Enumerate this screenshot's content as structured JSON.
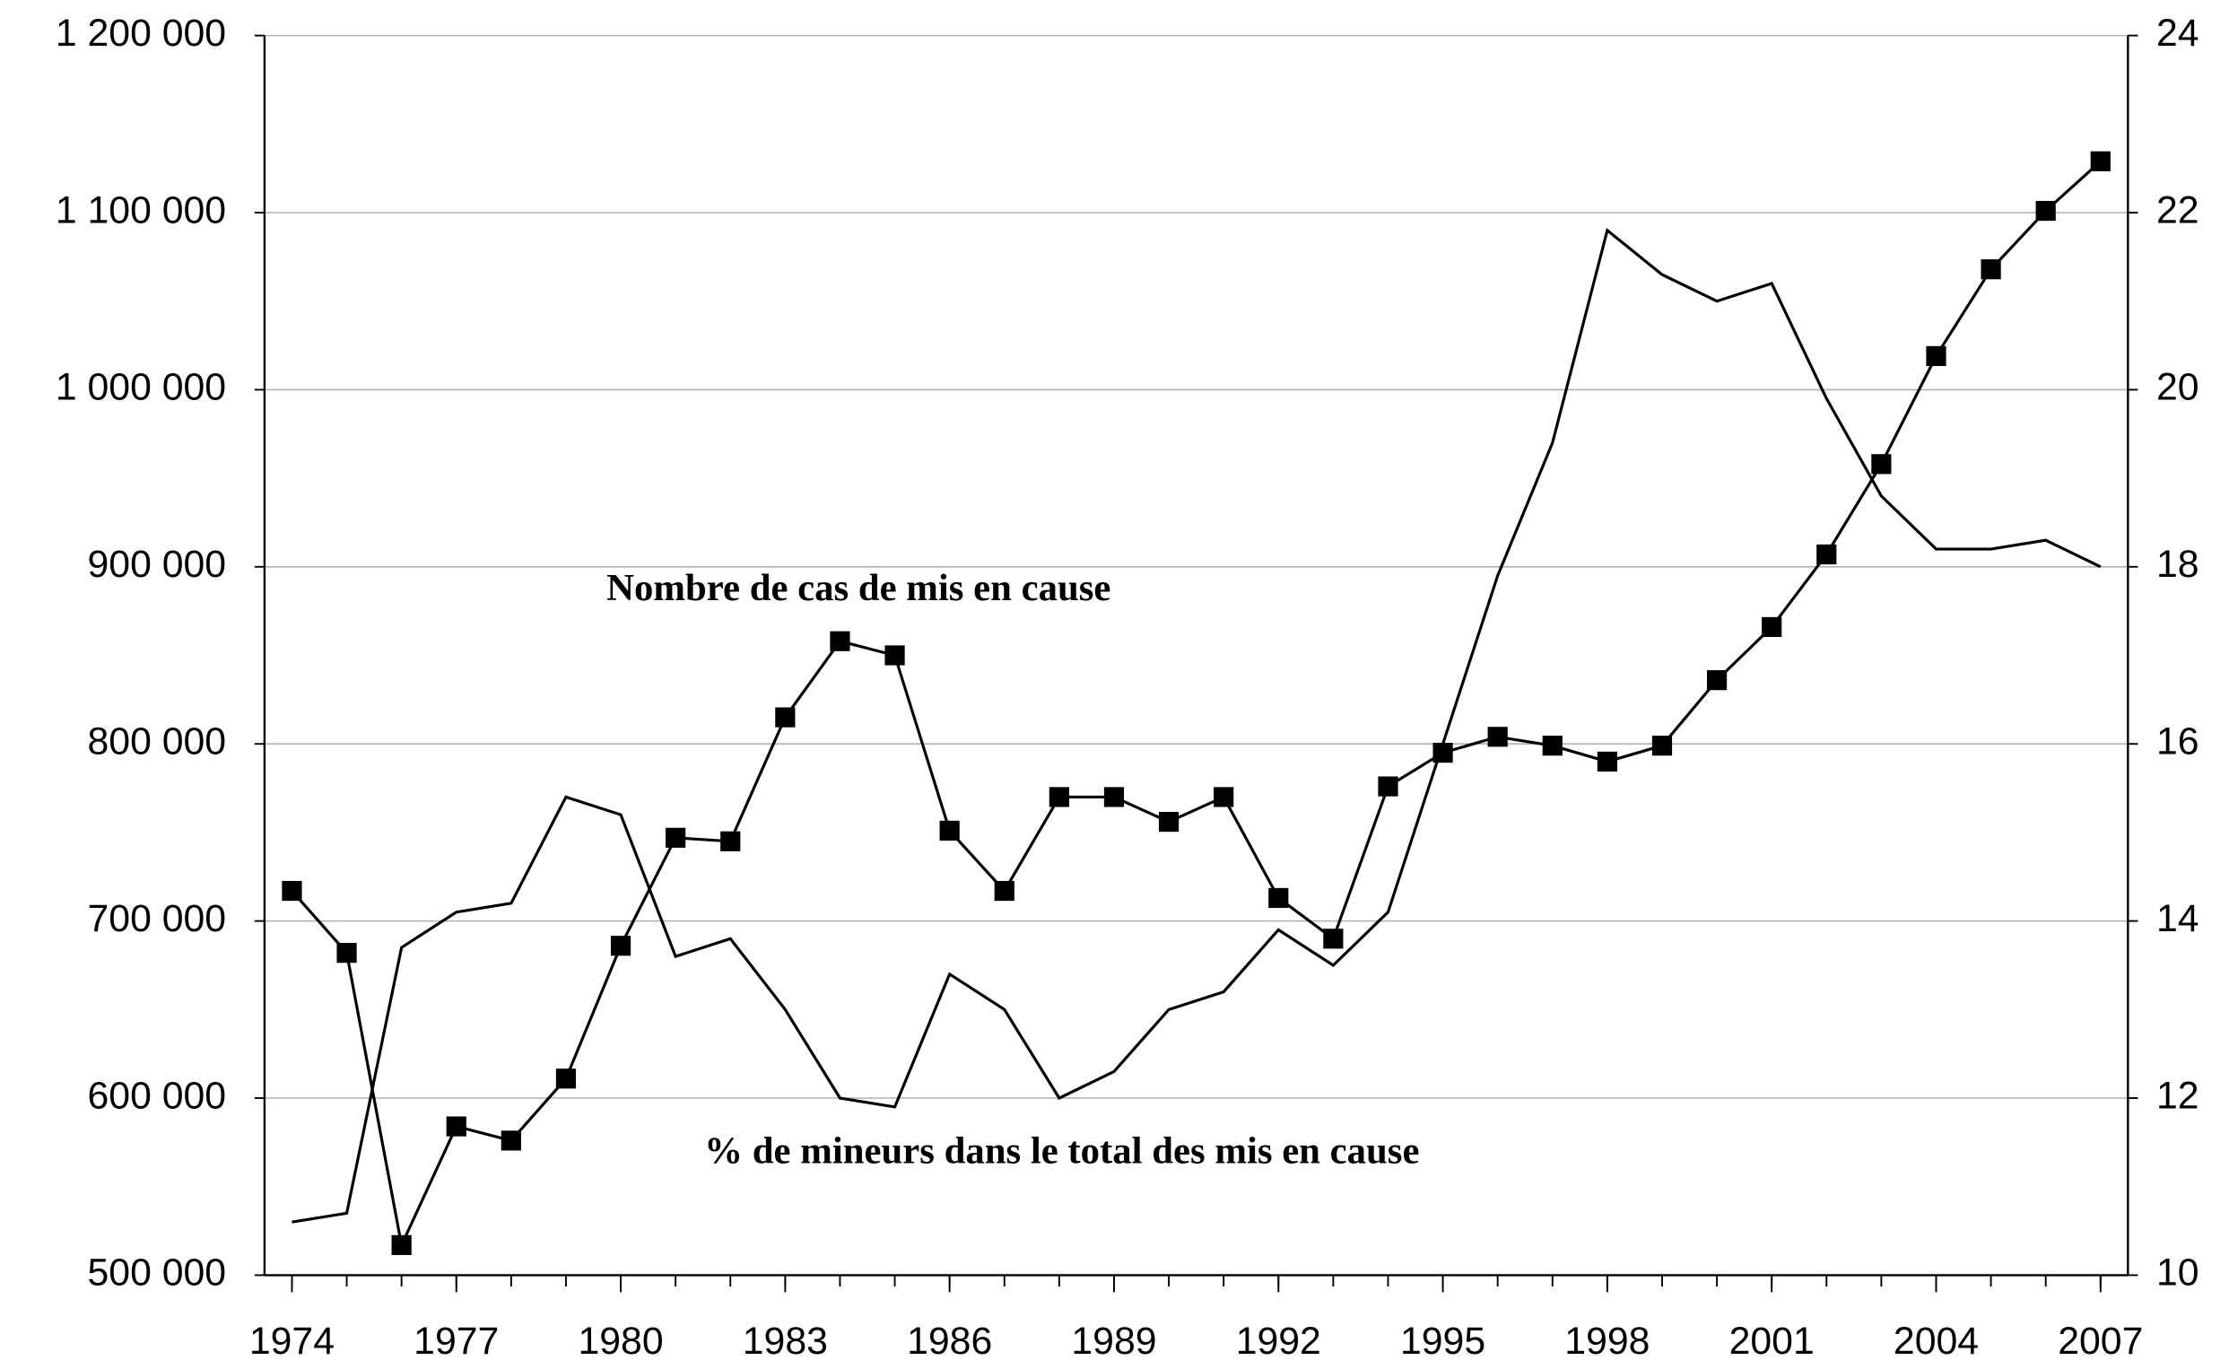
{
  "chart_data": {
    "type": "line",
    "x": [
      1974,
      1975,
      1976,
      1977,
      1978,
      1979,
      1980,
      1981,
      1982,
      1983,
      1984,
      1985,
      1986,
      1987,
      1988,
      1989,
      1990,
      1991,
      1992,
      1993,
      1994,
      1995,
      1996,
      1997,
      1998,
      1999,
      2000,
      2001,
      2002,
      2003,
      2004,
      2005,
      2006,
      2007
    ],
    "xlim": [
      1973.5,
      2007.5
    ],
    "xticks": [
      1974,
      1977,
      1980,
      1983,
      1986,
      1989,
      1992,
      1995,
      1998,
      2001,
      2004,
      2007
    ],
    "ylim": [
      500000,
      1200000
    ],
    "yticks": [
      {
        "value": 500000,
        "label": "500 000"
      },
      {
        "value": 600000,
        "label": "600 000"
      },
      {
        "value": 700000,
        "label": "700 000"
      },
      {
        "value": 800000,
        "label": "800 000"
      },
      {
        "value": 900000,
        "label": "900 000"
      },
      {
        "value": 1000000,
        "label": "1 000 000"
      },
      {
        "value": 1100000,
        "label": "1 100 000"
      },
      {
        "value": 1200000,
        "label": "1 200 000"
      }
    ],
    "y2lim": [
      10,
      24
    ],
    "y2ticks": [
      10,
      12,
      14,
      16,
      18,
      20,
      22,
      24
    ],
    "grid": true,
    "series": [
      {
        "name": "Nombre de cas de mis en cause",
        "color": "#000000",
        "marker": "square",
        "values": [
          717000,
          682000,
          517000,
          584000,
          576000,
          611000,
          686000,
          747000,
          745000,
          815000,
          858000,
          850000,
          751000,
          717000,
          770000,
          770000,
          756000,
          770000,
          713000,
          690000,
          776000,
          795000,
          804000,
          799000,
          790000,
          799000,
          836000,
          866000,
          907000,
          958000,
          1019000,
          1068000,
          1101000,
          1129000
        ]
      },
      {
        "name": "% de mineurs dans le total  des mis en cause",
        "color": "#000000",
        "axis": "y2",
        "values": [
          10.6,
          10.7,
          13.7,
          14.1,
          14.2,
          15.4,
          15.2,
          13.6,
          13.8,
          13.0,
          12.0,
          11.9,
          13.4,
          13.0,
          12.0,
          12.3,
          13.0,
          13.2,
          13.9,
          13.5,
          14.1,
          16.0,
          17.9,
          19.4,
          21.8,
          21.3,
          21.0,
          21.2,
          19.9,
          18.8,
          18.2,
          18.2,
          18.3,
          18.0
        ]
      }
    ]
  }
}
